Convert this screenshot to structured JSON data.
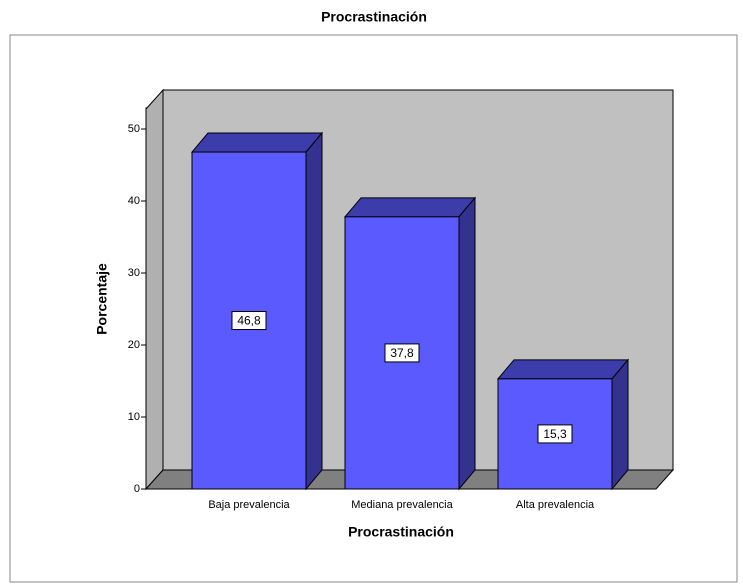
{
  "chart_data": {
    "type": "bar3d",
    "title": "Procrastinación",
    "x_label": "Procrastinación",
    "y_label": "Porcentaje",
    "categories": [
      "Baja prevalencia",
      "Mediana prevalencia",
      "Alta prevalencia"
    ],
    "values": [
      46.8,
      37.8,
      15.3
    ],
    "value_labels": [
      "46,8",
      "37,8",
      "15,3"
    ],
    "color": "#5a5aff",
    "ylim": [
      0,
      53
    ],
    "yticks": [
      0,
      10,
      20,
      30,
      40,
      50
    ]
  }
}
